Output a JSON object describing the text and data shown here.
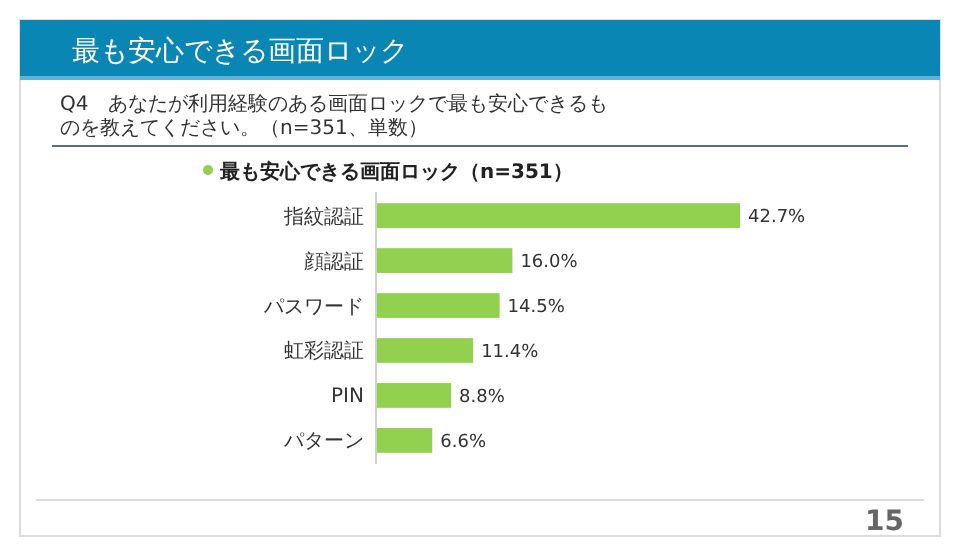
{
  "chart_data": {
    "type": "bar",
    "orientation": "horizontal",
    "title": "最も安心できる画面ロック",
    "subtitle": "Q4　あなたが利用経験のある画面ロックで最も安心できるものを教えてください。（n=351、単数）",
    "categories": [
      "指紋認証",
      "顔認証",
      "パスワード",
      "虹彩認証",
      "PIN",
      "パターン"
    ],
    "series": [
      {
        "name": "最も安心できる画面ロック（n=351）",
        "color": "#92d050",
        "values": [
          42.7,
          16.0,
          14.5,
          11.4,
          8.8,
          6.6
        ],
        "value_labels": [
          "42.7%",
          "16.0%",
          "14.5%",
          "11.4%",
          "8.8%",
          "6.6%"
        ]
      }
    ],
    "legend": "top left",
    "annotations": [
      "15"
    ]
  }
}
